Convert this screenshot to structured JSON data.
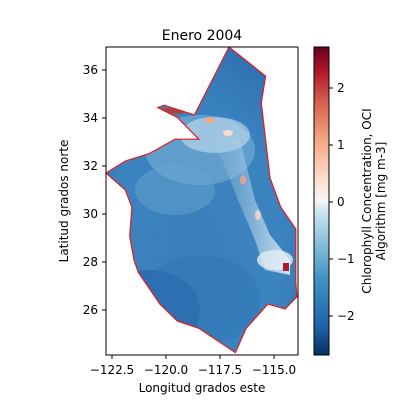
{
  "title": "Enero 2004",
  "xlabel": "Longitud grados este",
  "ylabel": "Latitud grados norte",
  "xticks": [
    {
      "value": -122.5,
      "label": "−122.5"
    },
    {
      "value": -120.0,
      "label": "−120.0"
    },
    {
      "value": -117.5,
      "label": "−117.5"
    },
    {
      "value": -115.0,
      "label": "−115.0"
    }
  ],
  "yticks": [
    {
      "value": 26,
      "label": "26"
    },
    {
      "value": 28,
      "label": "28"
    },
    {
      "value": 30,
      "label": "30"
    },
    {
      "value": 32,
      "label": "32"
    },
    {
      "value": 34,
      "label": "34"
    },
    {
      "value": 36,
      "label": "36"
    }
  ],
  "colorbar": {
    "label_line1": "Chlorophyll Concentration, OCI",
    "label_line2": "Algorithm [mg m-3]",
    "min": -2.7,
    "max": 2.7,
    "colormap": "RdBu_r",
    "ticks": [
      {
        "value": -2,
        "label": "−2"
      },
      {
        "value": -1,
        "label": "−1"
      },
      {
        "value": 0,
        "label": "0"
      },
      {
        "value": 1,
        "label": "1"
      },
      {
        "value": 2,
        "label": "2"
      }
    ]
  },
  "colors": {
    "boundary": "#e41a1c",
    "ocean_dark": "#2166ac",
    "ocean_mid": "#4393c3",
    "ocean_light": "#d1e5f0",
    "coast_high": "#b2182b"
  },
  "chart_data": {
    "type": "heatmap",
    "title": "Enero 2004",
    "xlabel": "Longitud grados este",
    "ylabel": "Latitud grados norte",
    "xlim": [
      -122.8,
      -113.9
    ],
    "ylim": [
      24.2,
      36.9
    ],
    "colorbar_range": [
      -2.7,
      2.7
    ],
    "boundary_polygon": [
      [
        -117.1,
        36.9
      ],
      [
        -115.4,
        35.7
      ],
      [
        -115.6,
        34.6
      ],
      [
        -115.2,
        31.5
      ],
      [
        -114.7,
        30.3
      ],
      [
        -114.0,
        29.4
      ],
      [
        -114.0,
        28.4
      ],
      [
        -114.0,
        27.2
      ],
      [
        -113.95,
        26.6
      ],
      [
        -114.5,
        26.1
      ],
      [
        -115.3,
        26.3
      ],
      [
        -116.3,
        25.3
      ],
      [
        -116.8,
        24.3
      ],
      [
        -118.5,
        25.3
      ],
      [
        -119.5,
        25.6
      ],
      [
        -120.3,
        26.3
      ],
      [
        -121.3,
        27.6
      ],
      [
        -121.5,
        28.1
      ],
      [
        -121.7,
        29.1
      ],
      [
        -121.6,
        30.3
      ],
      [
        -121.9,
        31.0
      ],
      [
        -122.8,
        31.7
      ],
      [
        -121.9,
        32.2
      ],
      [
        -120.8,
        32.5
      ],
      [
        -119.6,
        33.1
      ],
      [
        -118.5,
        33.1
      ],
      [
        -119.5,
        34.0
      ],
      [
        -120.4,
        34.4
      ],
      [
        -120.1,
        34.5
      ],
      [
        -118.7,
        34.1
      ],
      [
        -117.1,
        36.9
      ]
    ]
  }
}
